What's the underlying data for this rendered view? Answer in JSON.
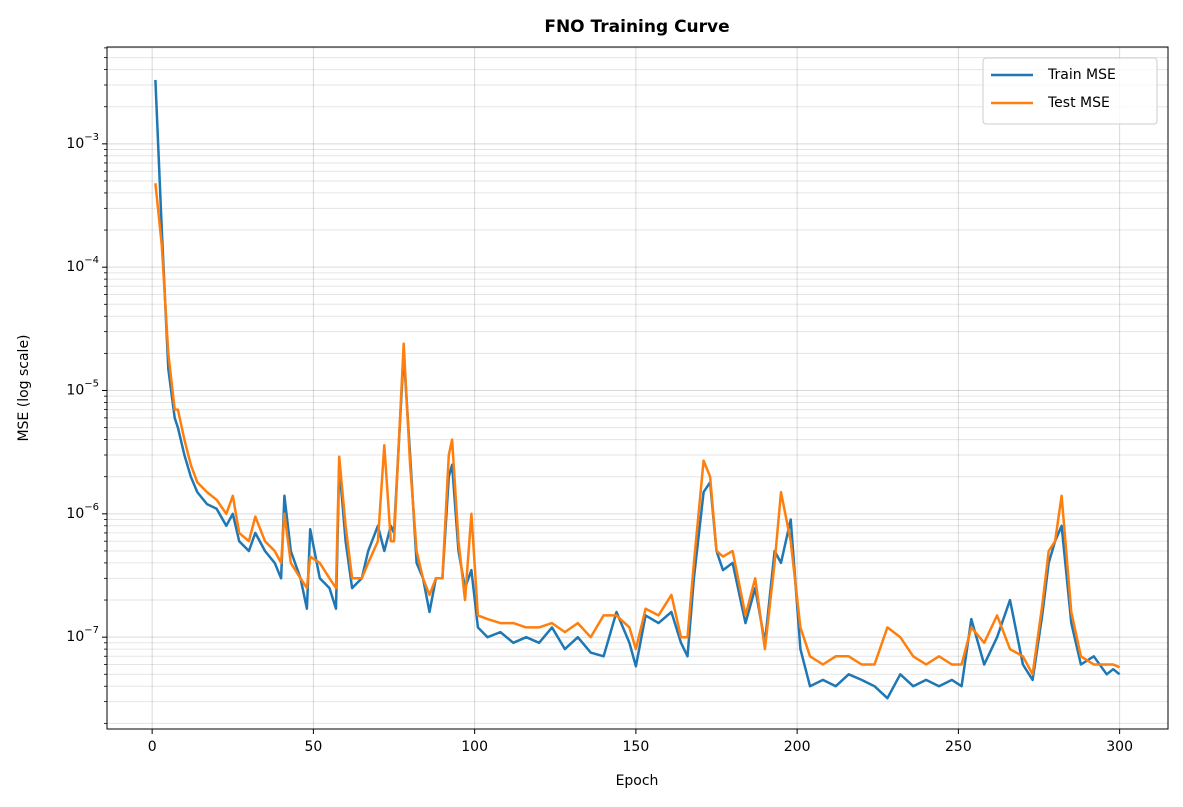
{
  "chart_data": {
    "type": "line",
    "title": "FNO Training Curve",
    "xlabel": "Epoch",
    "ylabel": "MSE (log scale)",
    "yscale": "log",
    "grid": true,
    "minor_grid": true,
    "legend": "upper right",
    "xlim": [
      -14,
      315
    ],
    "xticks": [
      0,
      50,
      100,
      150,
      200,
      250,
      300
    ],
    "ylim": [
      1.8e-08,
      0.0061
    ],
    "yticks": [
      {
        "value": 1e-07,
        "label": "10−7"
      },
      {
        "value": 1e-06,
        "label": "10−6"
      },
      {
        "value": 1e-05,
        "label": "10−5"
      },
      {
        "value": 0.0001,
        "label": "10−4"
      },
      {
        "value": 0.001,
        "label": "10−3"
      }
    ],
    "yminorticks": [
      2e-08,
      3e-08,
      4e-08,
      5e-08,
      6e-08,
      7e-08,
      8e-08,
      9e-08,
      2e-07,
      3e-07,
      4e-07,
      5e-07,
      6e-07,
      7e-07,
      8e-07,
      9e-07,
      2e-06,
      3e-06,
      4e-06,
      5e-06,
      6e-06,
      7e-06,
      8e-06,
      9e-06,
      2e-05,
      3e-05,
      4e-05,
      5e-05,
      6e-05,
      7e-05,
      8e-05,
      9e-05,
      0.0002,
      0.0003,
      0.0004,
      0.0005,
      0.0006,
      0.0007,
      0.0008,
      0.0009,
      0.002,
      0.003,
      0.004,
      0.005,
      0.006
    ],
    "x": [
      1,
      3,
      5,
      7,
      8,
      10,
      12,
      14,
      17,
      20,
      23,
      25,
      27,
      30,
      32,
      35,
      38,
      40,
      41,
      43,
      46,
      48,
      49,
      52,
      55,
      57,
      58,
      60,
      62,
      65,
      67,
      70,
      72,
      74,
      75,
      78,
      80,
      82,
      84,
      86,
      88,
      90,
      92,
      93,
      95,
      97,
      99,
      101,
      104,
      108,
      112,
      116,
      120,
      124,
      128,
      132,
      136,
      140,
      144,
      148,
      150,
      153,
      157,
      161,
      164,
      166,
      168,
      171,
      173,
      175,
      177,
      180,
      184,
      187,
      190,
      193,
      195,
      198,
      201,
      204,
      208,
      212,
      216,
      220,
      224,
      228,
      232,
      236,
      240,
      244,
      248,
      251,
      254,
      258,
      262,
      266,
      270,
      273,
      276,
      278,
      280,
      282,
      285,
      288,
      292,
      296,
      298,
      300
    ],
    "series": [
      {
        "name": "Train MSE",
        "color": "#1f77b4",
        "values": [
          0.0033,
          0.0002,
          1.5e-05,
          6e-06,
          5e-06,
          3e-06,
          2e-06,
          1.5e-06,
          1.2e-06,
          1.1e-06,
          8e-07,
          1e-06,
          6e-07,
          5e-07,
          7e-07,
          5e-07,
          4e-07,
          3e-07,
          1.4e-06,
          5e-07,
          3e-07,
          1.7e-07,
          7.5e-07,
          3e-07,
          2.5e-07,
          1.7e-07,
          2.5e-06,
          6e-07,
          2.5e-07,
          3e-07,
          5e-07,
          8e-07,
          5e-07,
          8e-07,
          7e-07,
          2e-05,
          3e-06,
          4e-07,
          3e-07,
          1.6e-07,
          3e-07,
          3e-07,
          2e-06,
          2.5e-06,
          5e-07,
          2.5e-07,
          3.5e-07,
          1.2e-07,
          1e-07,
          1.1e-07,
          9e-08,
          1e-07,
          9e-08,
          1.2e-07,
          8e-08,
          1e-07,
          7.5e-08,
          7e-08,
          1.6e-07,
          9e-08,
          5.8e-08,
          1.5e-07,
          1.3e-07,
          1.6e-07,
          9e-08,
          7e-08,
          3e-07,
          1.5e-06,
          1.8e-06,
          5e-07,
          3.5e-07,
          4e-07,
          1.3e-07,
          2.5e-07,
          9e-08,
          5e-07,
          4e-07,
          9e-07,
          8e-08,
          4e-08,
          4.5e-08,
          4e-08,
          5e-08,
          4.5e-08,
          4e-08,
          3.2e-08,
          5e-08,
          4e-08,
          4.5e-08,
          4e-08,
          4.5e-08,
          4e-08,
          1.4e-07,
          6e-08,
          1e-07,
          2e-07,
          6e-08,
          4.5e-08,
          1.5e-07,
          4e-07,
          6e-07,
          8e-07,
          1.3e-07,
          6e-08,
          7e-08,
          5e-08,
          5.5e-08,
          5e-08
        ]
      },
      {
        "name": "Test MSE",
        "color": "#ff7f0e",
        "values": [
          0.00048,
          0.00015,
          2e-05,
          7e-06,
          7e-06,
          4e-06,
          2.5e-06,
          1.8e-06,
          1.5e-06,
          1.3e-06,
          1e-06,
          1.4e-06,
          7e-07,
          6e-07,
          9.5e-07,
          6e-07,
          5e-07,
          4e-07,
          1e-06,
          4e-07,
          3e-07,
          2.5e-07,
          4.5e-07,
          4e-07,
          3e-07,
          2.5e-07,
          2.9e-06,
          8e-07,
          3e-07,
          3e-07,
          4e-07,
          6e-07,
          3.6e-06,
          6e-07,
          6e-07,
          2.4e-05,
          2.5e-06,
          5e-07,
          3e-07,
          2.2e-07,
          3e-07,
          3e-07,
          3e-06,
          4e-06,
          6e-07,
          2e-07,
          1e-06,
          1.5e-07,
          1.4e-07,
          1.3e-07,
          1.3e-07,
          1.2e-07,
          1.2e-07,
          1.3e-07,
          1.1e-07,
          1.3e-07,
          1e-07,
          1.5e-07,
          1.5e-07,
          1.2e-07,
          8e-08,
          1.7e-07,
          1.5e-07,
          2.2e-07,
          1e-07,
          1e-07,
          4e-07,
          2.7e-06,
          2e-06,
          5e-07,
          4.5e-07,
          5e-07,
          1.5e-07,
          3e-07,
          8e-08,
          4e-07,
          1.5e-06,
          6e-07,
          1.2e-07,
          7e-08,
          6e-08,
          7e-08,
          7e-08,
          6e-08,
          6e-08,
          1.2e-07,
          1e-07,
          7e-08,
          6e-08,
          7e-08,
          6e-08,
          6e-08,
          1.2e-07,
          9e-08,
          1.5e-07,
          8e-08,
          7e-08,
          5e-08,
          1.8e-07,
          5e-07,
          6e-07,
          1.4e-06,
          1.6e-07,
          7e-08,
          6e-08,
          6e-08,
          6e-08,
          5.7e-08
        ]
      }
    ]
  }
}
